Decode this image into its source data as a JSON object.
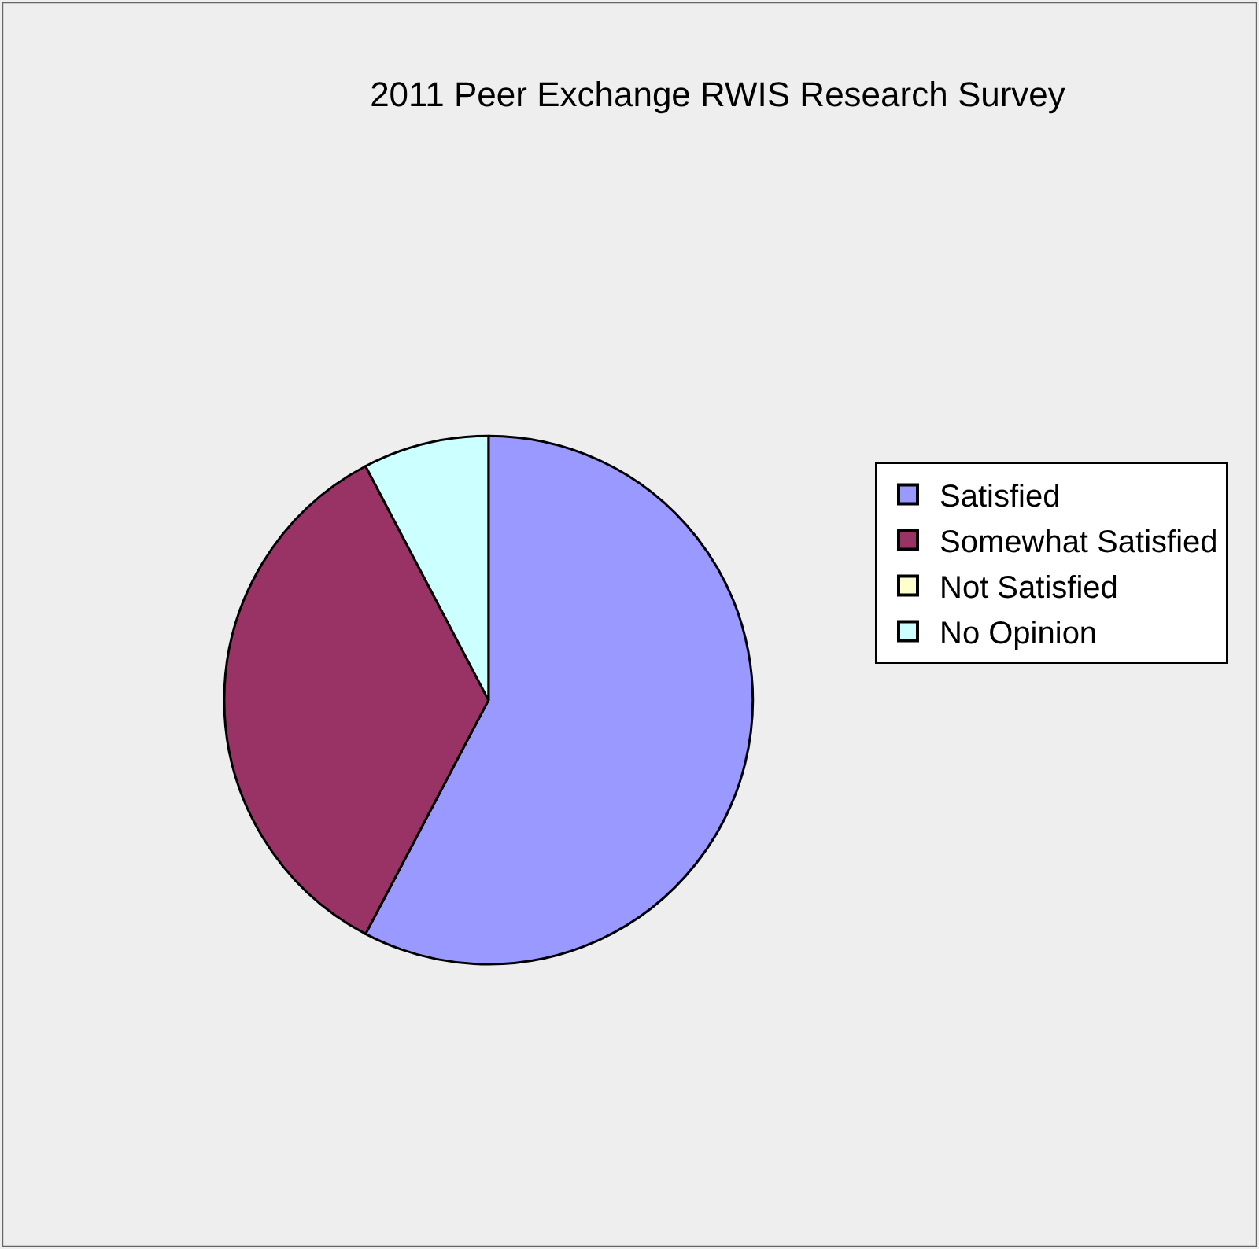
{
  "chart_data": {
    "type": "pie",
    "title": "2011 Peer Exchange RWIS Research Survey",
    "categories": [
      "Satisfied",
      "Somewhat Satisfied",
      "Not Satisfied",
      "No Opinion"
    ],
    "values": [
      57.7,
      34.6,
      0,
      7.7
    ],
    "colors": [
      "#9999ff",
      "#993366",
      "#ffffcc",
      "#ccffff"
    ],
    "legend": "right"
  }
}
